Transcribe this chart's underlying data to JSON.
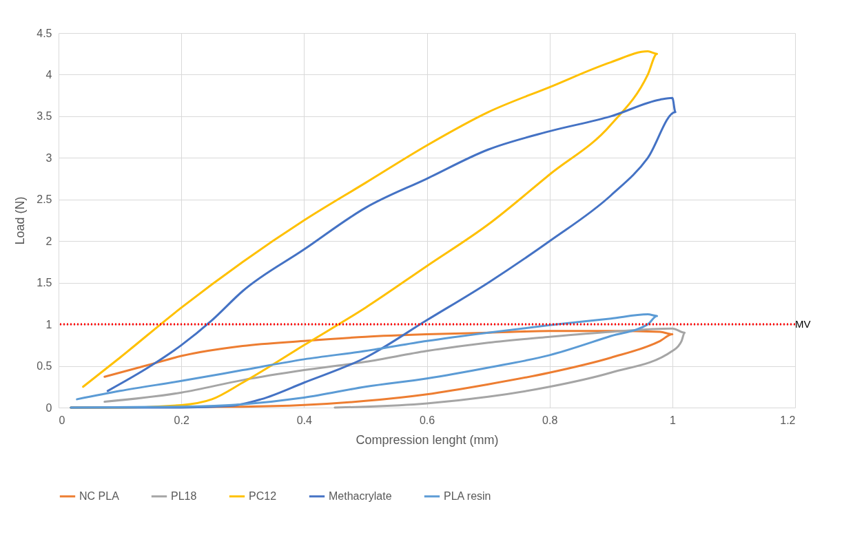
{
  "chart_data": {
    "type": "line",
    "xlabel": "Compression lenght (mm)",
    "ylabel": "Load (N)",
    "xlim": [
      0,
      1.2
    ],
    "xticks": [
      0,
      0.2,
      0.4,
      0.6,
      0.8,
      1,
      1.2
    ],
    "ylim": [
      0,
      4.5
    ],
    "yticks": [
      0,
      0.5,
      1,
      1.5,
      2,
      2.5,
      3,
      3.5,
      4,
      4.5
    ],
    "grid": true,
    "legend": "bottom",
    "ref_lines": [
      {
        "axis": "y",
        "value": 1,
        "label": "MV",
        "color": "#ff0000",
        "line_style": "dotted"
      }
    ],
    "series": [
      {
        "name": "NC PLA",
        "color": "#ed7d31",
        "x": [
          0.075,
          0.15,
          0.2,
          0.3,
          0.4,
          0.5,
          0.6,
          0.7,
          0.8,
          0.9,
          0.98,
          1.0,
          0.98,
          0.9,
          0.8,
          0.7,
          0.6,
          0.5,
          0.4,
          0.3,
          0.02
        ],
        "values": [
          0.37,
          0.52,
          0.62,
          0.74,
          0.8,
          0.85,
          0.88,
          0.9,
          0.92,
          0.92,
          0.91,
          0.88,
          0.8,
          0.6,
          0.42,
          0.28,
          0.16,
          0.08,
          0.03,
          0.01,
          0
        ]
      },
      {
        "name": "PL18",
        "color": "#a5a5a5",
        "x": [
          0.075,
          0.2,
          0.3,
          0.4,
          0.5,
          0.6,
          0.7,
          0.8,
          0.9,
          1.0,
          1.02,
          1.015,
          1.0,
          0.9,
          0.8,
          0.7,
          0.6,
          0.5,
          0.45
        ],
        "values": [
          0.07,
          0.18,
          0.33,
          0.45,
          0.55,
          0.68,
          0.78,
          0.85,
          0.91,
          0.95,
          0.9,
          0.8,
          0.68,
          0.42,
          0.25,
          0.13,
          0.05,
          0.01,
          0
        ]
      },
      {
        "name": "PC12",
        "color": "#ffc000",
        "x": [
          0.04,
          0.1,
          0.2,
          0.3,
          0.4,
          0.5,
          0.6,
          0.7,
          0.8,
          0.9,
          0.96,
          0.975,
          0.96,
          0.9,
          0.8,
          0.7,
          0.6,
          0.5,
          0.4,
          0.3,
          0.25,
          0.2,
          0.1,
          0.02
        ],
        "values": [
          0.25,
          0.6,
          1.2,
          1.75,
          2.25,
          2.7,
          3.15,
          3.55,
          3.85,
          4.15,
          4.28,
          4.25,
          4.0,
          3.4,
          2.8,
          2.2,
          1.7,
          1.2,
          0.75,
          0.3,
          0.1,
          0.03,
          0,
          0
        ]
      },
      {
        "name": "Methacrylate",
        "color": "#4472c4",
        "x": [
          0.08,
          0.15,
          0.2,
          0.25,
          0.3,
          0.4,
          0.5,
          0.6,
          0.7,
          0.8,
          0.9,
          0.98,
          1.0,
          1.005,
          0.96,
          0.9,
          0.8,
          0.7,
          0.6,
          0.5,
          0.4,
          0.33,
          0.28,
          0.2,
          0.02
        ],
        "values": [
          0.2,
          0.5,
          0.75,
          1.05,
          1.4,
          1.9,
          2.4,
          2.75,
          3.1,
          3.32,
          3.5,
          3.7,
          3.72,
          3.55,
          3.0,
          2.55,
          2.0,
          1.5,
          1.05,
          0.6,
          0.3,
          0.1,
          0.02,
          0,
          0
        ]
      },
      {
        "name": "PLA resin",
        "color": "#5b9bd5",
        "x": [
          0.03,
          0.1,
          0.2,
          0.3,
          0.4,
          0.5,
          0.6,
          0.7,
          0.8,
          0.9,
          0.96,
          0.975,
          0.96,
          0.9,
          0.8,
          0.7,
          0.6,
          0.5,
          0.4,
          0.3,
          0.2,
          0.02
        ],
        "values": [
          0.1,
          0.2,
          0.32,
          0.45,
          0.58,
          0.68,
          0.8,
          0.9,
          0.99,
          1.07,
          1.12,
          1.1,
          1.0,
          0.86,
          0.63,
          0.48,
          0.35,
          0.25,
          0.12,
          0.04,
          0.01,
          0
        ]
      }
    ]
  }
}
